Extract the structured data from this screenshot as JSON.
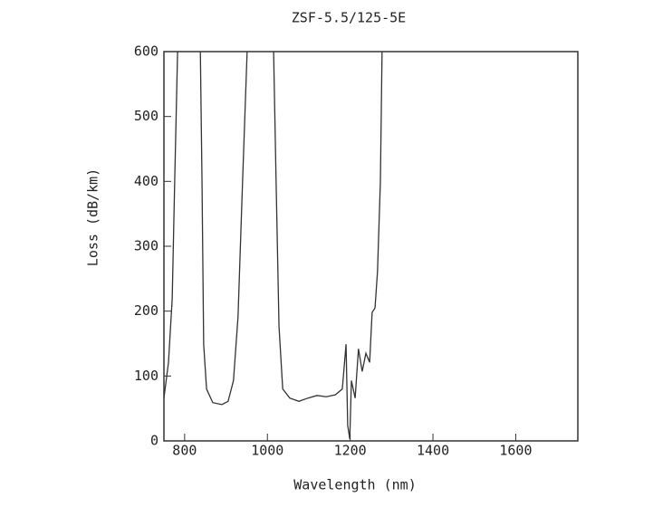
{
  "chart_data": {
    "type": "line",
    "title": "ZSF-5.5/125-5E",
    "xlabel": "Wavelength (nm)",
    "ylabel": "Loss (dB/km)",
    "x": [
      750,
      761,
      770,
      776,
      783,
      810,
      838,
      842,
      846,
      853,
      868,
      890,
      905,
      918,
      929,
      940,
      951,
      983,
      1015,
      1021,
      1028,
      1037,
      1054,
      1076,
      1098,
      1120,
      1142,
      1164,
      1181,
      1190,
      1194,
      1199,
      1203,
      1212,
      1220,
      1229,
      1238,
      1247,
      1253,
      1260,
      1266,
      1273,
      1277
    ],
    "series": [
      {
        "name": "ZSF-5.5/125-5E",
        "color": "#333333",
        "values": [
          66,
          121,
          219,
          400,
          600,
          null,
          600,
          400,
          149,
          80,
          59,
          56,
          61,
          93,
          191,
          400,
          600,
          null,
          600,
          400,
          177,
          80,
          66,
          61,
          66,
          70,
          68,
          71,
          80,
          149,
          24,
          3,
          93,
          66,
          142,
          107,
          135,
          121,
          198,
          205,
          261,
          400,
          600
        ]
      }
    ],
    "xlim": [
      750,
      1750
    ],
    "ylim": [
      0,
      600
    ],
    "xticks": [
      800,
      1000,
      1200,
      1400,
      1600
    ],
    "yticks": [
      0,
      100,
      200,
      300,
      400,
      500,
      600
    ]
  }
}
